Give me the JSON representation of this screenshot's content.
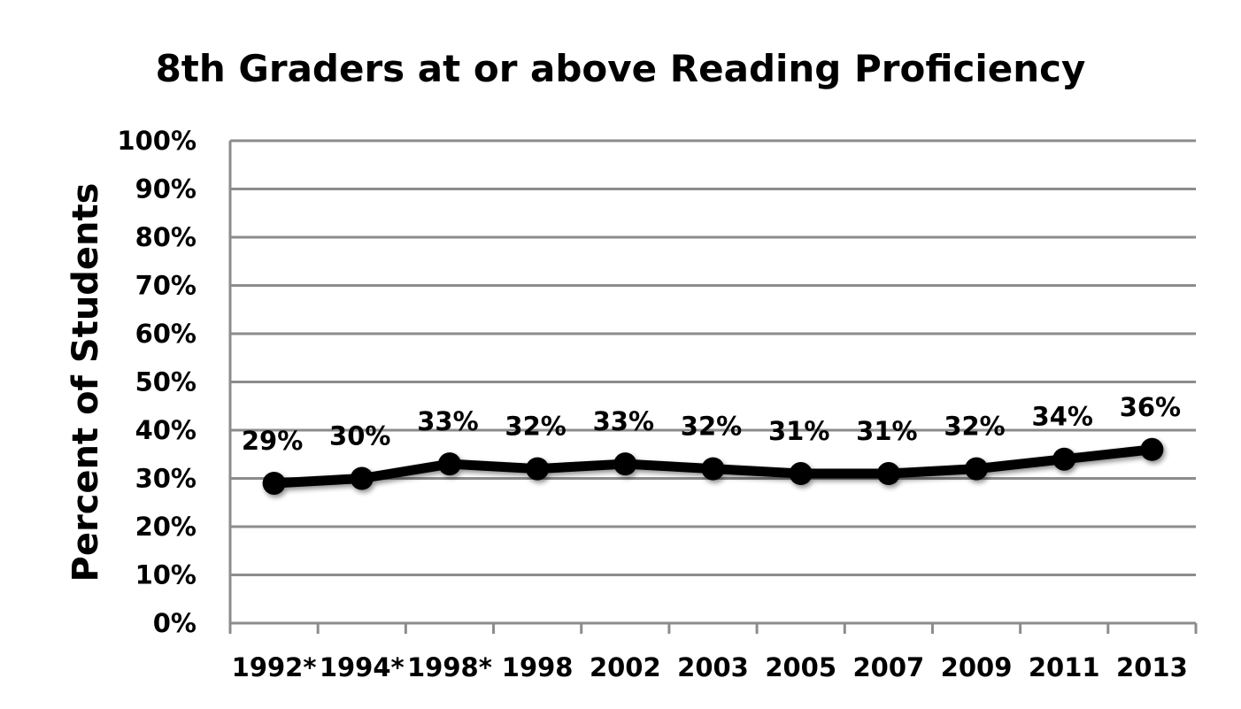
{
  "chart_data": {
    "type": "line",
    "title": "8th Graders at or above Reading Proficiency",
    "xlabel": "",
    "ylabel": "Percent of Students",
    "categories": [
      "1992*",
      "1994*",
      "1998*",
      "1998",
      "2002",
      "2003",
      "2005",
      "2007",
      "2009",
      "2011",
      "2013"
    ],
    "series": [
      {
        "values": [
          29,
          30,
          33,
          32,
          33,
          32,
          31,
          31,
          32,
          34,
          36
        ],
        "data_labels": [
          "29%",
          "30%",
          "33%",
          "32%",
          "33%",
          "32%",
          "31%",
          "31%",
          "32%",
          "34%",
          "36%"
        ],
        "color": "#000000"
      }
    ],
    "ylim": [
      0,
      100
    ],
    "y_ticks": [
      0,
      10,
      20,
      30,
      40,
      50,
      60,
      70,
      80,
      90,
      100
    ],
    "y_tick_labels": [
      "0%",
      "10%",
      "20%",
      "30%",
      "40%",
      "50%",
      "60%",
      "70%",
      "80%",
      "90%",
      "100%"
    ],
    "grid": true,
    "gridline_color": "#8c8c8c",
    "legend": "none"
  }
}
